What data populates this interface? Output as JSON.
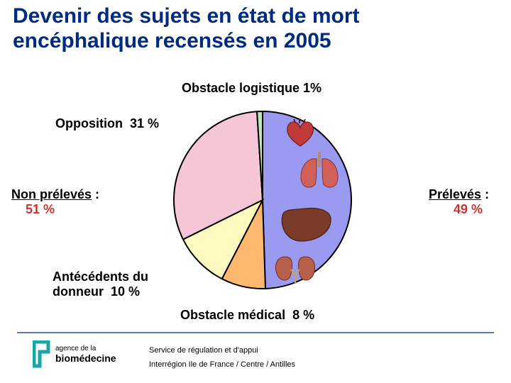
{
  "title": "Devenir des sujets en état de mort encéphalique recensés en 2005",
  "labels": {
    "top": "Obstacle logistique 1%",
    "opposition": "Opposition  31 %",
    "antecedents": "Antécédents du\ndonneur  10 %",
    "obstacle_med": "Obstacle médical  8 %"
  },
  "left_side": {
    "line1": "Non prélevés",
    "line2": "51 %"
  },
  "right_side": {
    "line1": "Prélevés",
    "line2": "49 %"
  },
  "footer": {
    "line1": "Service de régulation et d'appui",
    "line2": "Interrégion Ile de France / Centre / Antilles",
    "logo_top": "agence de la",
    "logo_bottom": "biomédecine"
  },
  "pie": {
    "radius": 125,
    "stroke": "#000000",
    "stroke_width": 2,
    "slices": [
      {
        "name": "preleves",
        "value": 49,
        "color": "#9a9af0"
      },
      {
        "name": "obstacle_med",
        "value": 8,
        "color": "#ffb870"
      },
      {
        "name": "antecedents",
        "value": 10,
        "color": "#fffac0"
      },
      {
        "name": "opposition",
        "value": 31,
        "color": "#f4c6d6"
      },
      {
        "name": "obstacle_logis",
        "value": 1,
        "color": "#c0e8c0"
      }
    ]
  },
  "colors": {
    "title": "#002b80",
    "emphasis": "#cc3333",
    "rule": "#5b7ab0",
    "logo_frame": "#1aa6a3",
    "organ_heart": "#c23b3b",
    "organ_lung": "#d2605a",
    "organ_liver": "#7a3b28",
    "organ_kidney": "#b7604b"
  },
  "typography": {
    "title_fontsize": 30,
    "label_fontsize": 18,
    "footer_fontsize": 11
  }
}
